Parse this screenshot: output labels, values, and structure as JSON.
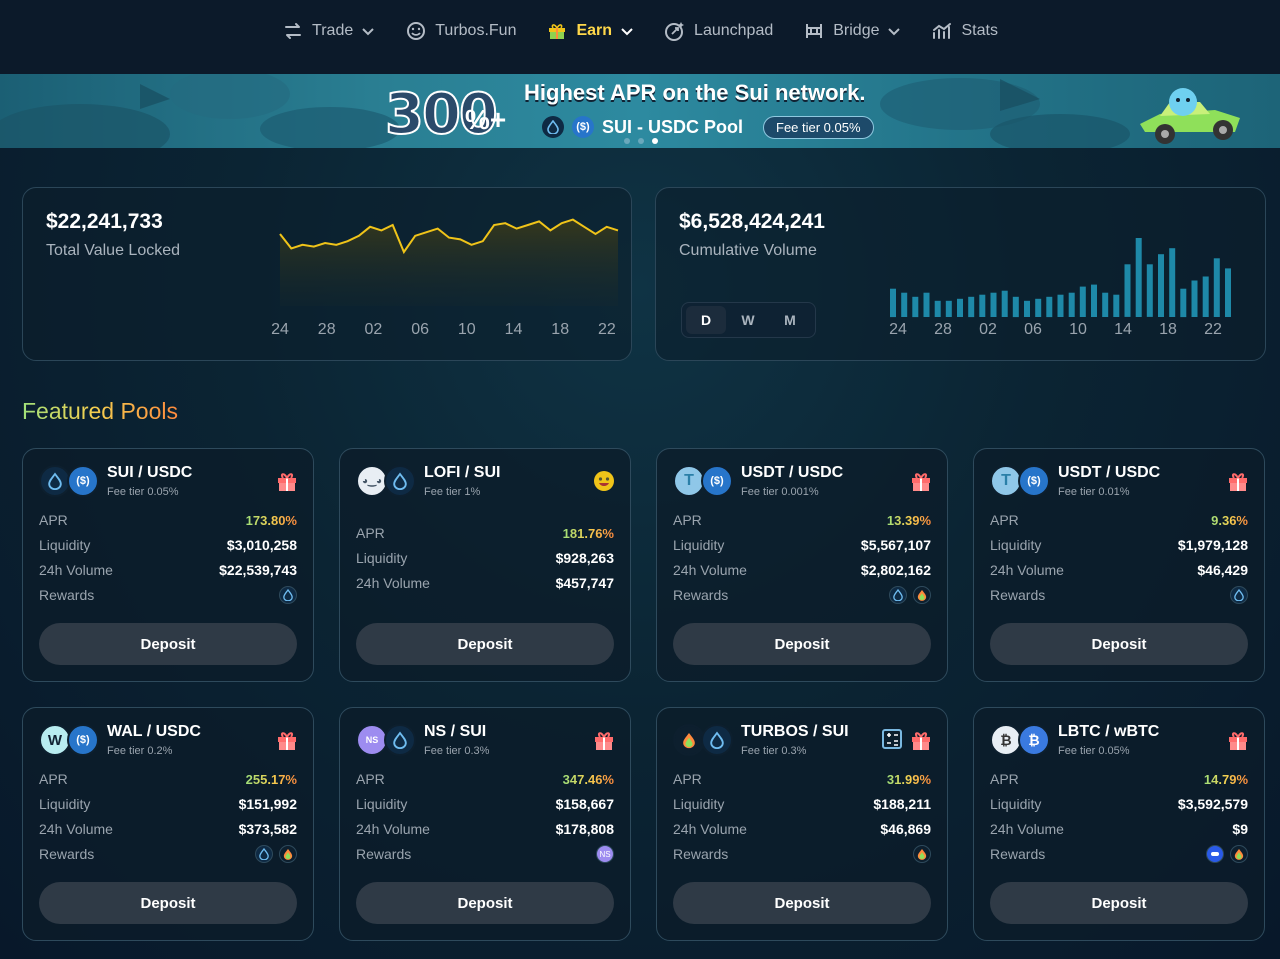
{
  "nav": {
    "items": [
      {
        "label": "Trade",
        "icon": "swap-icon",
        "dropdown": true,
        "active": false
      },
      {
        "label": "Turbos.Fun",
        "icon": "smile-icon",
        "dropdown": false,
        "active": false
      },
      {
        "label": "Earn",
        "icon": "gift-icon",
        "dropdown": true,
        "active": true
      },
      {
        "label": "Launchpad",
        "icon": "rocket-icon",
        "dropdown": false,
        "active": false
      },
      {
        "label": "Bridge",
        "icon": "bridge-icon",
        "dropdown": true,
        "active": false
      },
      {
        "label": "Stats",
        "icon": "chart-icon",
        "dropdown": false,
        "active": false
      }
    ]
  },
  "banner": {
    "big": "300",
    "plus": "%+",
    "headline": "Highest APR on the Sui network.",
    "pool": "SUI - USDC  Pool",
    "fee": "Fee tier 0.05%",
    "active_slide": 3,
    "slides": 3
  },
  "tvl": {
    "value": "$22,241,733",
    "label": "Total Value Locked",
    "ticks": [
      "24",
      "28",
      "02",
      "06",
      "10",
      "14",
      "18",
      "22"
    ],
    "chart_data": {
      "type": "area",
      "x": [
        0,
        1,
        2,
        3,
        4,
        5,
        6,
        7,
        8,
        9,
        10,
        11,
        12,
        13,
        14,
        15,
        16,
        17,
        18,
        19,
        20,
        21,
        22,
        23,
        24,
        25,
        26,
        27,
        28,
        29,
        30
      ],
      "values": [
        22.0,
        21.2,
        21.4,
        21.3,
        21.5,
        21.4,
        21.6,
        21.9,
        22.4,
        22.2,
        22.5,
        21.0,
        21.9,
        22.1,
        22.3,
        21.8,
        21.7,
        21.4,
        21.6,
        22.5,
        22.6,
        22.3,
        22.5,
        22.7,
        22.2,
        22.6,
        22.8,
        22.4,
        22.0,
        22.4,
        22.2
      ],
      "color": "#f0c419"
    }
  },
  "volume": {
    "value": "$6,528,424,241",
    "label": "Cumulative Volume",
    "ticks": [
      "24",
      "28",
      "02",
      "06",
      "10",
      "14",
      "18",
      "22"
    ],
    "timeframes": [
      "D",
      "W",
      "M"
    ],
    "active_timeframe": "D",
    "chart_data": {
      "type": "bar",
      "values": [
        28,
        24,
        20,
        24,
        16,
        16,
        18,
        20,
        22,
        24,
        26,
        20,
        16,
        18,
        20,
        22,
        24,
        30,
        32,
        24,
        22,
        52,
        78,
        52,
        62,
        68,
        28,
        36,
        40,
        58,
        48
      ],
      "color": "#1e89a8"
    }
  },
  "featured_title": "Featured Pools",
  "labels": {
    "apr": "APR",
    "liquidity": "Liquidity",
    "volume": "24h Volume",
    "rewards": "Rewards",
    "deposit": "Deposit"
  },
  "pools": [
    {
      "name": "SUI / USDC",
      "fee": "Fee tier 0.05%",
      "apr": "173.80%",
      "liquidity": "$3,010,258",
      "volume": "$22,539,743",
      "tokens": [
        "sui",
        "usdc"
      ],
      "rewards": [
        "sui"
      ],
      "badge": "gift"
    },
    {
      "name": "LOFI / SUI",
      "fee": "Fee tier 1%",
      "apr": "181.76%",
      "liquidity": "$928,263",
      "volume": "$457,747",
      "tokens": [
        "lofi",
        "sui"
      ],
      "rewards": [],
      "badge": "emoji"
    },
    {
      "name": "USDT / USDC",
      "fee": "Fee tier 0.001%",
      "apr": "13.39%",
      "liquidity": "$5,567,107",
      "volume": "$2,802,162",
      "tokens": [
        "usdt",
        "usdc"
      ],
      "rewards": [
        "sui",
        "turbos"
      ],
      "badge": "gift"
    },
    {
      "name": "USDT / USDC",
      "fee": "Fee tier 0.01%",
      "apr": "9.36%",
      "liquidity": "$1,979,128",
      "volume": "$46,429",
      "tokens": [
        "usdt",
        "usdc"
      ],
      "rewards": [
        "sui"
      ],
      "badge": "gift"
    },
    {
      "name": "WAL / USDC",
      "fee": "Fee tier 0.2%",
      "apr": "255.17%",
      "liquidity": "$151,992",
      "volume": "$373,582",
      "tokens": [
        "wal",
        "usdc"
      ],
      "rewards": [
        "sui",
        "turbos"
      ],
      "badge": "gift"
    },
    {
      "name": "NS / SUI",
      "fee": "Fee tier 0.3%",
      "apr": "347.46%",
      "liquidity": "$158,667",
      "volume": "$178,808",
      "tokens": [
        "ns",
        "sui"
      ],
      "rewards": [
        "ns"
      ],
      "badge": "gift"
    },
    {
      "name": "TURBOS / SUI",
      "fee": "Fee tier 0.3%",
      "apr": "31.99%",
      "liquidity": "$188,211",
      "volume": "$46,869",
      "tokens": [
        "turbos",
        "sui"
      ],
      "rewards": [
        "turbos"
      ],
      "badge": "gift",
      "badge2": "calc"
    },
    {
      "name": "LBTC / wBTC",
      "fee": "Fee tier 0.05%",
      "apr": "14.79%",
      "liquidity": "$3,592,579",
      "volume": "$9",
      "tokens": [
        "lbtc",
        "wbtc"
      ],
      "rewards": [
        "blue",
        "turbos"
      ],
      "badge": "gift"
    }
  ]
}
